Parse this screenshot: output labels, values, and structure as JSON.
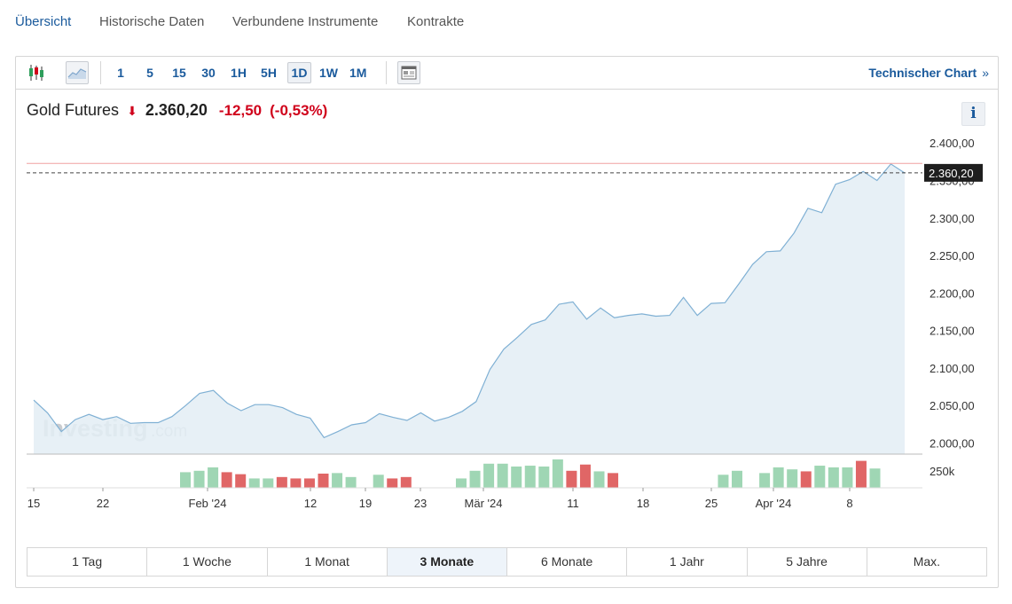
{
  "nav": {
    "tabs": [
      {
        "label": "Übersicht",
        "active": true
      },
      {
        "label": "Historische Daten"
      },
      {
        "label": "Verbundene Instrumente"
      },
      {
        "label": "Kontrakte"
      }
    ]
  },
  "toolbar": {
    "icons": [
      "candlestick-icon",
      "area-chart-icon",
      "news-icon"
    ],
    "intervals": [
      "1",
      "5",
      "15",
      "30",
      "1H",
      "5H",
      "1D",
      "1W",
      "1M"
    ],
    "active_interval": "1D",
    "technical_chart_label": "Technischer Chart",
    "technical_chart_chevron": "»"
  },
  "quote": {
    "name": "Gold Futures",
    "last": "2.360,20",
    "change": "-12,50",
    "change_pct": "(-0,53%)",
    "direction": "down",
    "info_label": "i"
  },
  "colors": {
    "line": "#7fb0d4",
    "area": "#e3edf5",
    "up_volume": "#9fd6b4",
    "down_volume": "#e06666",
    "prev_close_line": "#f0a0a0",
    "last_price_label_bg": "#1e1e1e"
  },
  "chart_data": {
    "type": "area",
    "watermark": "Investing",
    "watermark_suffix": ".com",
    "y_ticks": [
      "2.400,00",
      "2.350,00",
      "2.300,00",
      "2.250,00",
      "2.200,00",
      "2.150,00",
      "2.100,00",
      "2.050,00",
      "2.000,00"
    ],
    "ylim": [
      1985,
      2405
    ],
    "x_ticks": [
      "15",
      "22",
      "Feb '24",
      "12",
      "19",
      "23",
      "Mär '24",
      "11",
      "18",
      "25",
      "Apr '24",
      "8"
    ],
    "last_price_label": "2.360,20",
    "last_price": 2360.2,
    "previous_close": 2372.7,
    "series": [
      {
        "values": [
          2057,
          2040,
          2015,
          2031,
          2038,
          2031,
          2035,
          2026,
          2027,
          2027,
          2035,
          2050,
          2066,
          2070,
          2053,
          2043,
          2051,
          2051,
          2047,
          2038,
          2033,
          2007,
          2015,
          2024,
          2027,
          2039,
          2034,
          2030,
          2040,
          2029,
          2034,
          2042,
          2055,
          2098,
          2125,
          2141,
          2158,
          2164,
          2185,
          2188,
          2165,
          2180,
          2167,
          2170,
          2172,
          2169,
          2170,
          2194,
          2170,
          2186,
          2187,
          2212,
          2238,
          2255,
          2256,
          2280,
          2313,
          2307,
          2345,
          2351,
          2362,
          2350,
          2372,
          2360
        ]
      }
    ],
    "volume": {
      "label": "250k",
      "bars": [
        {
          "v": 0.55,
          "up": true
        },
        {
          "v": 0.6,
          "up": true
        },
        {
          "v": 0.72,
          "up": true
        },
        {
          "v": 0.55,
          "up": false
        },
        {
          "v": 0.48,
          "up": false
        },
        {
          "v": 0.33,
          "up": true
        },
        {
          "v": 0.33,
          "up": true
        },
        {
          "v": 0.38,
          "up": false
        },
        {
          "v": 0.33,
          "up": false
        },
        {
          "v": 0.33,
          "up": false
        },
        {
          "v": 0.5,
          "up": false
        },
        {
          "v": 0.52,
          "up": true
        },
        {
          "v": 0.38,
          "up": true
        },
        {
          "v": null
        },
        {
          "v": 0.46,
          "up": true
        },
        {
          "v": 0.33,
          "up": false
        },
        {
          "v": 0.38,
          "up": false
        },
        {
          "v": null
        },
        {
          "v": null
        },
        {
          "v": null
        },
        {
          "v": 0.33,
          "up": true
        },
        {
          "v": 0.6,
          "up": true
        },
        {
          "v": 0.85,
          "up": true
        },
        {
          "v": 0.85,
          "up": true
        },
        {
          "v": 0.75,
          "up": true
        },
        {
          "v": 0.78,
          "up": true
        },
        {
          "v": 0.75,
          "up": true
        },
        {
          "v": 1.0,
          "up": true
        },
        {
          "v": 0.6,
          "up": false
        },
        {
          "v": 0.82,
          "up": false
        },
        {
          "v": 0.58,
          "up": true
        },
        {
          "v": 0.52,
          "up": false
        },
        {
          "v": null
        },
        {
          "v": null
        },
        {
          "v": null
        },
        {
          "v": null
        },
        {
          "v": null
        },
        {
          "v": null
        },
        {
          "v": null
        },
        {
          "v": 0.46,
          "up": true
        },
        {
          "v": 0.6,
          "up": true
        },
        {
          "v": null
        },
        {
          "v": 0.52,
          "up": true
        },
        {
          "v": 0.72,
          "up": true
        },
        {
          "v": 0.65,
          "up": true
        },
        {
          "v": 0.58,
          "up": false
        },
        {
          "v": 0.78,
          "up": true
        },
        {
          "v": 0.72,
          "up": true
        },
        {
          "v": 0.72,
          "up": true
        },
        {
          "v": 0.95,
          "up": false
        },
        {
          "v": 0.68,
          "up": true
        }
      ]
    }
  },
  "ranges": {
    "items": [
      "1 Tag",
      "1 Woche",
      "1 Monat",
      "3 Monate",
      "6 Monate",
      "1 Jahr",
      "5 Jahre",
      "Max."
    ],
    "active": "3 Monate"
  }
}
